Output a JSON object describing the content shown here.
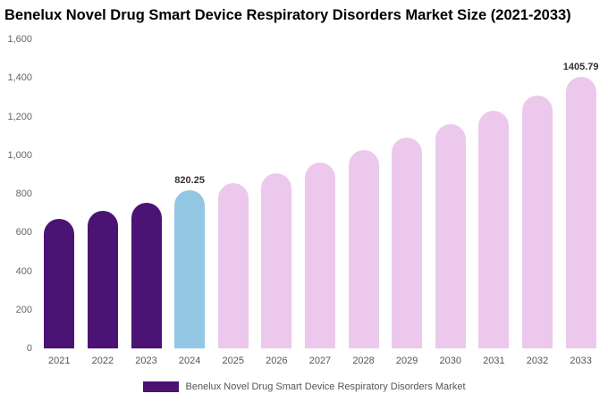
{
  "title": "Benelux Novel Drug Smart Device Respiratory Disorders Market Size (2021-2033)",
  "legend": {
    "label": "Benelux Novel Drug Smart Device Respiratory Disorders Market",
    "swatch_color": "#4a1374"
  },
  "colors": {
    "dark_purple": "#4a1374",
    "highlight_blue": "#93c6e2",
    "forecast_pink": "#ecc9ec"
  },
  "chart_data": {
    "type": "bar",
    "title": "Benelux Novel Drug Smart Device Respiratory Disorders Market Size (2021-2033)",
    "xlabel": "",
    "ylabel": "",
    "ylim": [
      0,
      1600
    ],
    "grid": false,
    "legend_position": "bottom",
    "categories": [
      "2021",
      "2022",
      "2023",
      "2024",
      "2025",
      "2026",
      "2027",
      "2028",
      "2029",
      "2030",
      "2031",
      "2032",
      "2033"
    ],
    "values": [
      670,
      710,
      755,
      820.25,
      855,
      905,
      960,
      1025,
      1090,
      1160,
      1230,
      1310,
      1405.79
    ],
    "bar_colors": [
      "#4a1374",
      "#4a1374",
      "#4a1374",
      "#93c6e2",
      "#ecc9ec",
      "#ecc9ec",
      "#ecc9ec",
      "#ecc9ec",
      "#ecc9ec",
      "#ecc9ec",
      "#ecc9ec",
      "#ecc9ec",
      "#ecc9ec"
    ],
    "yticks": [
      "0",
      "200",
      "400",
      "600",
      "800",
      "1,000",
      "1,200",
      "1,400",
      "1,600"
    ],
    "annotations": [
      {
        "index": 3,
        "text": "820.25"
      },
      {
        "index": 12,
        "text": "1405.79"
      }
    ]
  }
}
